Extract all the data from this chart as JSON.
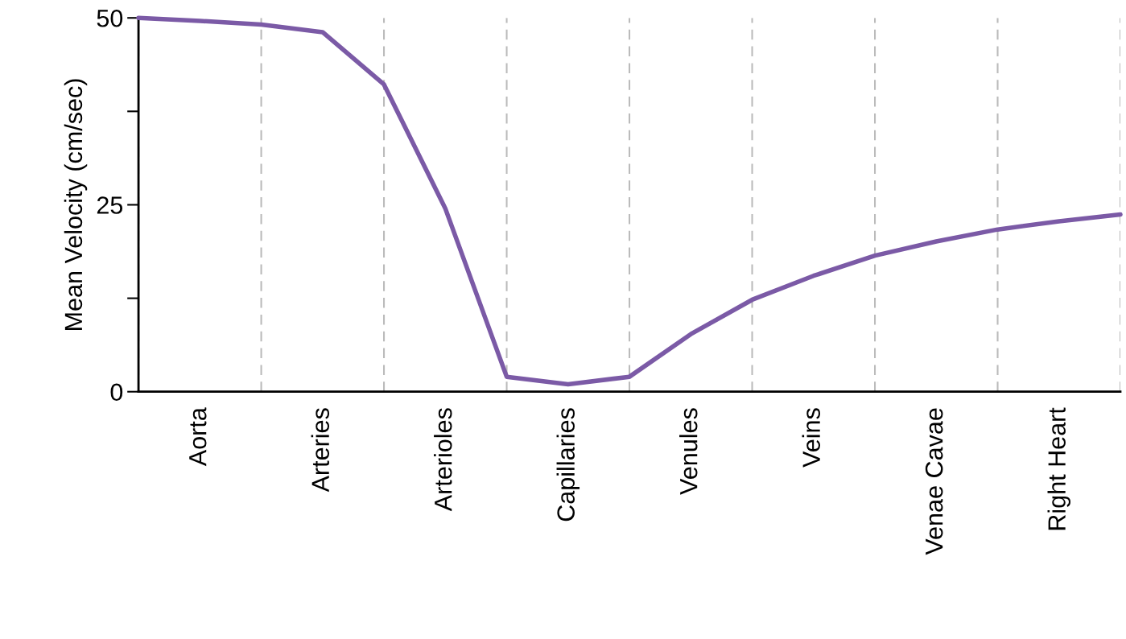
{
  "chart_data": {
    "type": "line",
    "ylabel": "Mean Velocity (cm/sec)",
    "categories": [
      null,
      "Aorta",
      null,
      "Arteries",
      null,
      "Arterioles",
      null,
      "Capillaries",
      null,
      "Venules",
      null,
      "Veins",
      null,
      "Venae Cavae",
      null,
      "Right Heart",
      null
    ],
    "series": [
      {
        "color": "#7b5aa6",
        "values": [
          50,
          49.6,
          49.1,
          48.1,
          41.1,
          24.5,
          2.0,
          1.0,
          2.0,
          7.7,
          12.3,
          15.5,
          18.2,
          20.1,
          21.7,
          22.8,
          23.7
        ]
      }
    ],
    "ylim": [
      0,
      50
    ],
    "yticks": [
      0,
      {
        "value": 12.5,
        "label": null
      },
      25,
      {
        "value": 37.5,
        "label": null
      },
      50
    ],
    "grid": "x",
    "legend": false,
    "marker": "none",
    "line_style": "solid"
  }
}
